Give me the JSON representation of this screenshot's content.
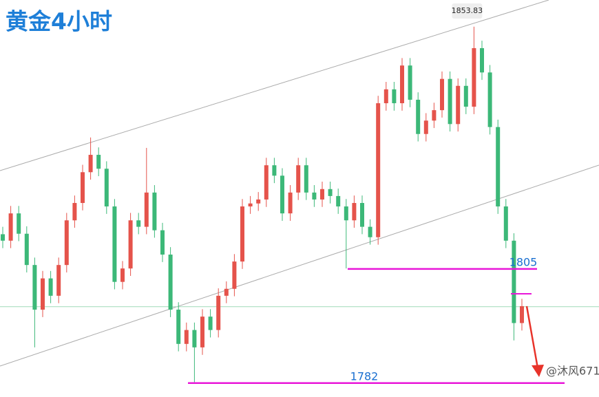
{
  "chart_data": {
    "type": "candlestick",
    "title": "黄金4小时",
    "open": [
      1812.0,
      1810.7,
      1816.2,
      1812.1,
      1805.8,
      1796.8,
      1803.1,
      1799.6,
      1805.8,
      1814.8,
      1818.3,
      1824.5,
      1828.0,
      1825.2,
      1817.6,
      1802.4,
      1805.1,
      1814.8,
      1813.5,
      1820.4,
      1812.8,
      1807.9,
      1796.8,
      1789.9,
      1792.7,
      1789.2,
      1795.4,
      1792.7,
      1799.6,
      1801.0,
      1806.5,
      1817.6,
      1818.2,
      1819.0,
      1825.9,
      1823.8,
      1816.2,
      1820.4,
      1825.9,
      1820.4,
      1819.0,
      1821.1,
      1819.7,
      1817.6,
      1814.8,
      1818.3,
      1813.5,
      1811.4,
      1838.4,
      1841.2,
      1838.4,
      1846.0,
      1839.1,
      1832.2,
      1834.9,
      1837.0,
      1843.3,
      1834.2,
      1841.9,
      1837.7,
      1849.5,
      1844.6,
      1833.6,
      1817.6,
      1810.7,
      1794.1
    ],
    "high": [
      1813.5,
      1817.7,
      1817.7,
      1813.6,
      1807.3,
      1804.6,
      1804.6,
      1807.3,
      1816.3,
      1819.8,
      1826.0,
      1831.5,
      1829.5,
      1826.7,
      1819.1,
      1806.6,
      1816.3,
      1816.3,
      1829.4,
      1821.9,
      1814.3,
      1809.4,
      1798.3,
      1794.2,
      1794.2,
      1796.9,
      1796.9,
      1801.1,
      1802.5,
      1808.0,
      1819.1,
      1819.7,
      1820.5,
      1827.4,
      1827.4,
      1825.3,
      1821.9,
      1827.4,
      1827.4,
      1821.9,
      1822.6,
      1822.6,
      1821.2,
      1819.1,
      1819.8,
      1819.8,
      1815.0,
      1839.9,
      1842.7,
      1842.7,
      1847.5,
      1847.5,
      1840.6,
      1836.4,
      1838.5,
      1844.8,
      1844.8,
      1843.4,
      1843.4,
      1853.83,
      1851.0,
      1846.1,
      1835.1,
      1819.1,
      1812.2,
      1799.0
    ],
    "low": [
      1809.2,
      1809.2,
      1810.6,
      1804.3,
      1789.2,
      1795.3,
      1798.1,
      1798.1,
      1804.3,
      1813.3,
      1816.8,
      1823.0,
      1823.7,
      1816.1,
      1800.9,
      1800.9,
      1803.6,
      1812.0,
      1812.0,
      1811.3,
      1806.4,
      1795.3,
      1788.4,
      1788.4,
      1782.2,
      1787.7,
      1791.2,
      1791.2,
      1798.1,
      1799.5,
      1805.0,
      1816.1,
      1816.7,
      1817.5,
      1822.3,
      1814.7,
      1814.7,
      1818.9,
      1818.9,
      1817.5,
      1817.5,
      1818.2,
      1816.1,
      1805.1,
      1813.3,
      1812.0,
      1809.9,
      1809.9,
      1836.9,
      1836.9,
      1836.9,
      1837.6,
      1830.7,
      1830.7,
      1833.4,
      1835.5,
      1832.7,
      1832.7,
      1836.2,
      1836.2,
      1843.1,
      1832.1,
      1816.1,
      1809.2,
      1790.6,
      1792.6
    ],
    "close": [
      1810.7,
      1816.2,
      1812.1,
      1805.8,
      1796.8,
      1803.1,
      1799.6,
      1805.8,
      1814.8,
      1818.3,
      1824.5,
      1828.0,
      1825.2,
      1817.6,
      1802.4,
      1805.1,
      1814.8,
      1813.5,
      1820.4,
      1812.8,
      1807.9,
      1796.8,
      1789.9,
      1792.7,
      1789.2,
      1795.4,
      1792.7,
      1799.6,
      1801.0,
      1806.5,
      1817.6,
      1818.2,
      1819.0,
      1825.9,
      1823.8,
      1816.2,
      1820.4,
      1825.9,
      1820.4,
      1819.0,
      1821.1,
      1819.7,
      1817.6,
      1814.8,
      1818.3,
      1813.5,
      1811.4,
      1838.4,
      1841.2,
      1838.4,
      1846.0,
      1839.1,
      1832.2,
      1834.9,
      1837.0,
      1843.3,
      1834.2,
      1841.9,
      1837.7,
      1849.5,
      1844.6,
      1833.6,
      1817.6,
      1810.7,
      1794.1,
      1797.5
    ],
    "up_color": "#e5534b",
    "down_color": "#3cb878",
    "ylim": [
      1779.2,
      1859.2
    ],
    "levels": [
      1805,
      1782
    ],
    "level_color": "#e815d8",
    "target_level": 1800.0,
    "current_price": 1797.4,
    "watermark": "@沐风671"
  }
}
